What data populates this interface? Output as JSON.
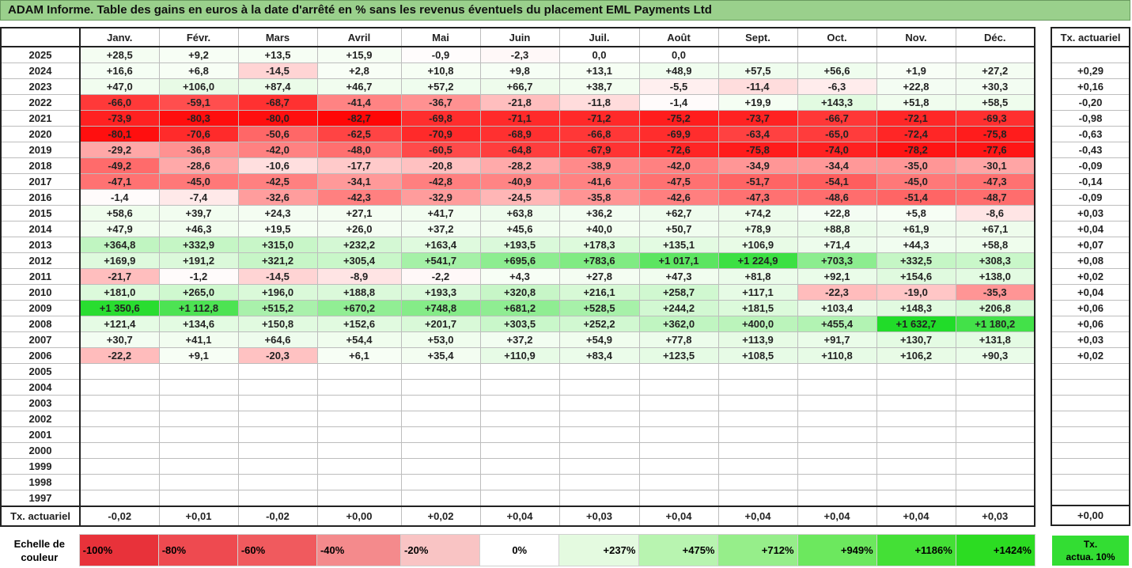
{
  "title": "ADAM Informe. Table des gains en euros à la date d'arrêté en % sans les revenus éventuels du placement EML Payments Ltd",
  "months": [
    "Janv.",
    "Févr.",
    "Mars",
    "Avril",
    "Mai",
    "Juin",
    "Juil.",
    "Août",
    "Sept.",
    "Oct.",
    "Nov.",
    "Déc."
  ],
  "tx_header": "Tx. actuariel",
  "rows": [
    {
      "year": "2025",
      "cells": [
        "+28,5",
        "+9,2",
        "+13,5",
        "+15,9",
        "-0,9",
        "-2,3",
        "0,0",
        "0,0",
        "",
        "",
        "",
        ""
      ],
      "tx": ""
    },
    {
      "year": "2024",
      "cells": [
        "+16,6",
        "+6,8",
        "-14,5",
        "+2,8",
        "+10,8",
        "+9,8",
        "+13,1",
        "+48,9",
        "+57,5",
        "+56,6",
        "+1,9",
        "+27,2"
      ],
      "tx": "+0,29"
    },
    {
      "year": "2023",
      "cells": [
        "+47,0",
        "+106,0",
        "+87,4",
        "+46,7",
        "+57,2",
        "+66,7",
        "+38,7",
        "-5,5",
        "-11,4",
        "-6,3",
        "+22,8",
        "+30,3"
      ],
      "tx": "+0,16"
    },
    {
      "year": "2022",
      "cells": [
        "-66,0",
        "-59,1",
        "-68,7",
        "-41,4",
        "-36,7",
        "-21,8",
        "-11,8",
        "-1,4",
        "+19,9",
        "+143,3",
        "+51,8",
        "+58,5"
      ],
      "tx": "-0,20"
    },
    {
      "year": "2021",
      "cells": [
        "-73,9",
        "-80,3",
        "-80,0",
        "-82,7",
        "-69,8",
        "-71,1",
        "-71,2",
        "-75,2",
        "-73,7",
        "-66,7",
        "-72,1",
        "-69,3"
      ],
      "tx": "-0,98"
    },
    {
      "year": "2020",
      "cells": [
        "-80,1",
        "-70,6",
        "-50,6",
        "-62,5",
        "-70,9",
        "-68,9",
        "-66,8",
        "-69,9",
        "-63,4",
        "-65,0",
        "-72,4",
        "-75,8"
      ],
      "tx": "-0,63"
    },
    {
      "year": "2019",
      "cells": [
        "-29,2",
        "-36,8",
        "-42,0",
        "-48,0",
        "-60,5",
        "-64,8",
        "-67,9",
        "-72,6",
        "-75,8",
        "-74,0",
        "-78,2",
        "-77,6"
      ],
      "tx": "-0,43"
    },
    {
      "year": "2018",
      "cells": [
        "-49,2",
        "-28,6",
        "-10,6",
        "-17,7",
        "-20,8",
        "-28,2",
        "-38,9",
        "-42,0",
        "-34,9",
        "-34,4",
        "-35,0",
        "-30,1"
      ],
      "tx": "-0,09"
    },
    {
      "year": "2017",
      "cells": [
        "-47,1",
        "-45,0",
        "-42,5",
        "-34,1",
        "-42,8",
        "-40,9",
        "-41,6",
        "-47,5",
        "-51,7",
        "-54,1",
        "-45,0",
        "-47,3"
      ],
      "tx": "-0,14"
    },
    {
      "year": "2016",
      "cells": [
        "-1,4",
        "-7,4",
        "-32,6",
        "-42,3",
        "-32,9",
        "-24,5",
        "-35,8",
        "-42,6",
        "-47,3",
        "-48,6",
        "-51,4",
        "-48,7"
      ],
      "tx": "-0,09"
    },
    {
      "year": "2015",
      "cells": [
        "+58,6",
        "+39,7",
        "+24,3",
        "+27,1",
        "+41,7",
        "+63,8",
        "+36,2",
        "+62,7",
        "+74,2",
        "+22,8",
        "+5,8",
        "-8,6"
      ],
      "tx": "+0,03"
    },
    {
      "year": "2014",
      "cells": [
        "+47,9",
        "+46,3",
        "+19,5",
        "+26,0",
        "+37,2",
        "+45,6",
        "+40,0",
        "+50,7",
        "+78,9",
        "+88,8",
        "+61,9",
        "+67,1"
      ],
      "tx": "+0,04"
    },
    {
      "year": "2013",
      "cells": [
        "+364,8",
        "+332,9",
        "+315,0",
        "+232,2",
        "+163,4",
        "+193,5",
        "+178,3",
        "+135,1",
        "+106,9",
        "+71,4",
        "+44,3",
        "+58,8"
      ],
      "tx": "+0,07"
    },
    {
      "year": "2012",
      "cells": [
        "+169,9",
        "+191,2",
        "+321,2",
        "+305,4",
        "+541,7",
        "+695,6",
        "+783,6",
        "+1 017,1",
        "+1 224,9",
        "+703,3",
        "+332,5",
        "+308,3"
      ],
      "tx": "+0,08"
    },
    {
      "year": "2011",
      "cells": [
        "-21,7",
        "-1,2",
        "-14,5",
        "-8,9",
        "-2,2",
        "+4,3",
        "+27,8",
        "+47,3",
        "+81,8",
        "+92,1",
        "+154,6",
        "+138,0"
      ],
      "tx": "+0,02"
    },
    {
      "year": "2010",
      "cells": [
        "+181,0",
        "+265,0",
        "+196,0",
        "+188,8",
        "+193,3",
        "+320,8",
        "+216,1",
        "+258,7",
        "+117,1",
        "-22,3",
        "-19,0",
        "-35,3"
      ],
      "tx": "+0,04"
    },
    {
      "year": "2009",
      "cells": [
        "+1 350,6",
        "+1 112,8",
        "+515,2",
        "+670,2",
        "+748,8",
        "+681,2",
        "+528,5",
        "+244,2",
        "+181,5",
        "+103,4",
        "+148,3",
        "+206,8"
      ],
      "tx": "+0,06"
    },
    {
      "year": "2008",
      "cells": [
        "+121,4",
        "+134,6",
        "+150,8",
        "+152,6",
        "+201,7",
        "+303,5",
        "+252,2",
        "+362,0",
        "+400,0",
        "+455,4",
        "+1 632,7",
        "+1 180,2"
      ],
      "tx": "+0,06"
    },
    {
      "year": "2007",
      "cells": [
        "+30,7",
        "+41,1",
        "+64,6",
        "+54,4",
        "+53,0",
        "+37,2",
        "+54,9",
        "+77,8",
        "+113,9",
        "+91,7",
        "+130,7",
        "+131,8"
      ],
      "tx": "+0,03"
    },
    {
      "year": "2006",
      "cells": [
        "-22,2",
        "+9,1",
        "-20,3",
        "+6,1",
        "+35,4",
        "+110,9",
        "+83,4",
        "+123,5",
        "+108,5",
        "+110,8",
        "+106,2",
        "+90,3"
      ],
      "tx": "+0,02"
    },
    {
      "year": "2005",
      "cells": [
        "",
        "",
        "",
        "",
        "",
        "",
        "",
        "",
        "",
        "",
        "",
        ""
      ],
      "tx": ""
    },
    {
      "year": "2004",
      "cells": [
        "",
        "",
        "",
        "",
        "",
        "",
        "",
        "",
        "",
        "",
        "",
        ""
      ],
      "tx": ""
    },
    {
      "year": "2003",
      "cells": [
        "",
        "",
        "",
        "",
        "",
        "",
        "",
        "",
        "",
        "",
        "",
        ""
      ],
      "tx": ""
    },
    {
      "year": "2002",
      "cells": [
        "",
        "",
        "",
        "",
        "",
        "",
        "",
        "",
        "",
        "",
        "",
        ""
      ],
      "tx": ""
    },
    {
      "year": "2001",
      "cells": [
        "",
        "",
        "",
        "",
        "",
        "",
        "",
        "",
        "",
        "",
        "",
        ""
      ],
      "tx": ""
    },
    {
      "year": "2000",
      "cells": [
        "",
        "",
        "",
        "",
        "",
        "",
        "",
        "",
        "",
        "",
        "",
        ""
      ],
      "tx": ""
    },
    {
      "year": "1999",
      "cells": [
        "",
        "",
        "",
        "",
        "",
        "",
        "",
        "",
        "",
        "",
        "",
        ""
      ],
      "tx": ""
    },
    {
      "year": "1998",
      "cells": [
        "",
        "",
        "",
        "",
        "",
        "",
        "",
        "",
        "",
        "",
        "",
        ""
      ],
      "tx": ""
    },
    {
      "year": "1997",
      "cells": [
        "",
        "",
        "",
        "",
        "",
        "",
        "",
        "",
        "",
        "",
        "",
        ""
      ],
      "tx": ""
    }
  ],
  "tx_row": {
    "label": "Tx. actuariel",
    "cells": [
      "-0,02",
      "+0,01",
      "-0,02",
      "+0,00",
      "+0,02",
      "+0,04",
      "+0,03",
      "+0,04",
      "+0,04",
      "+0,04",
      "+0,04",
      "+0,03"
    ],
    "total": "+0,00"
  },
  "scale": {
    "label_line1": "Echelle de",
    "label_line2": "couleur",
    "items": [
      {
        "label": "-100%",
        "color": "#e8323a"
      },
      {
        "label": "-80%",
        "color": "#ee4a50"
      },
      {
        "label": "-60%",
        "color": "#f05a5e"
      },
      {
        "label": "-40%",
        "color": "#f48a8c"
      },
      {
        "label": "-20%",
        "color": "#f9c4c4"
      },
      {
        "label": "0%",
        "color": "#ffffff"
      },
      {
        "label": "+237%",
        "color": "#e4fae0"
      },
      {
        "label": "+475%",
        "color": "#b8f4b0"
      },
      {
        "label": "+712%",
        "color": "#96ee8a"
      },
      {
        "label": "+949%",
        "color": "#6ce85e"
      },
      {
        "label": "+1186%",
        "color": "#44e036"
      },
      {
        "label": "+1424%",
        "color": "#2cdc22"
      }
    ],
    "tx_line1": "Tx.",
    "tx_line2": "actua. 10%",
    "tx_color": "#33dd33"
  }
}
